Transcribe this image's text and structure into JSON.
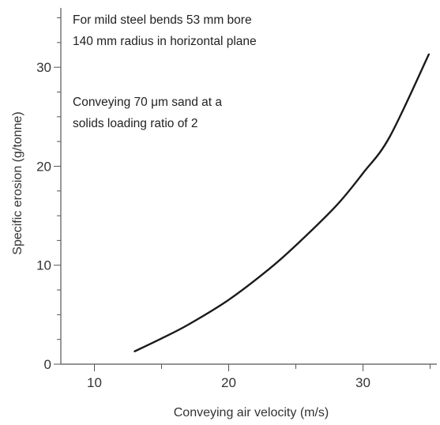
{
  "chart_data": {
    "type": "line",
    "xlabel": "Conveying air velocity (m/s)",
    "ylabel": "Specific erosion (g/tonne)",
    "xlim": [
      7.5,
      35.5
    ],
    "ylim": [
      0,
      36
    ],
    "x_ticks": [
      10,
      20,
      30
    ],
    "y_ticks": [
      0,
      10,
      20,
      30
    ],
    "grid": false,
    "series": [
      {
        "x": [
          13,
          15,
          17,
          20,
          23,
          25,
          28,
          30,
          32,
          34.9
        ],
        "y": [
          1.3,
          2.6,
          4.0,
          6.5,
          9.6,
          12.0,
          16.0,
          19.3,
          23.0,
          31.3
        ]
      }
    ],
    "annotations": [
      {
        "lines": [
          "For mild steel bends 53 mm bore",
          "140 mm radius in horizontal plane"
        ]
      },
      {
        "lines": [
          "Conveying 70 μm sand at a",
          "solids loading ratio of 2"
        ]
      }
    ]
  }
}
